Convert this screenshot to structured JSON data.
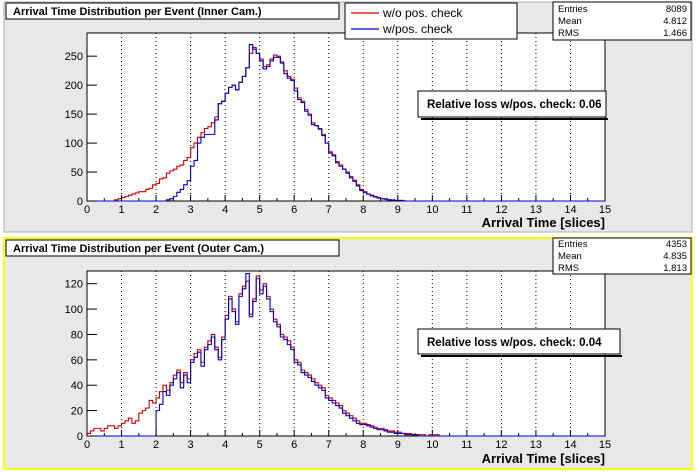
{
  "colors": {
    "background": "#e8e8e8",
    "frame_bottom_border": "#ffff00",
    "series_without_check": "#cc0000",
    "series_with_check": "#0000cc",
    "grid": "#000000"
  },
  "chart_data": [
    {
      "type": "histogram",
      "title": "Arrival Time Distribution per Event (Inner Cam.)",
      "xlabel": "Arrival Time [slices]",
      "ylabel": "",
      "xlim": [
        0,
        15
      ],
      "ylim": [
        0,
        290
      ],
      "xticks": [
        "0",
        "1",
        "2",
        "3",
        "4",
        "5",
        "6",
        "7",
        "8",
        "9",
        "10",
        "11",
        "12",
        "13",
        "14",
        "15"
      ],
      "yticks": [
        "0",
        "50",
        "100",
        "150",
        "200",
        "250"
      ],
      "grid": "vertical dotted",
      "legend_position": "top-center",
      "bin_width": 0.1,
      "series": [
        {
          "name": "w/o pos. check",
          "color": "#cc0000",
          "values": [
            0,
            0,
            0,
            0,
            0,
            0,
            0,
            0,
            2,
            4,
            6,
            8,
            10,
            12,
            14,
            16,
            16,
            20,
            22,
            28,
            30,
            38,
            40,
            48,
            52,
            55,
            60,
            62,
            70,
            75,
            92,
            100,
            110,
            118,
            125,
            128,
            135,
            145,
            168,
            172,
            186,
            196,
            200,
            192,
            205,
            215,
            230,
            255,
            265,
            255,
            245,
            232,
            235,
            245,
            252,
            250,
            240,
            225,
            215,
            210,
            195,
            178,
            172,
            158,
            150,
            135,
            130,
            125,
            115,
            100,
            85,
            80,
            68,
            62,
            55,
            50,
            42,
            36,
            28,
            20,
            16,
            12,
            10,
            8,
            6,
            4,
            4,
            2,
            2,
            1,
            1,
            1,
            0,
            0,
            0,
            0,
            0,
            0,
            0,
            0,
            0,
            0,
            0,
            0,
            0,
            0,
            0,
            0,
            0,
            0,
            0,
            0,
            0,
            0,
            0,
            0,
            0,
            0,
            0,
            0,
            0,
            0,
            0,
            0,
            0,
            0,
            0,
            0,
            0,
            0,
            0,
            0,
            0,
            0,
            0,
            0,
            0,
            0,
            0,
            0,
            0,
            0,
            0,
            0,
            0,
            0,
            0,
            0,
            0,
            0
          ]
        },
        {
          "name": "w/pos. check",
          "color": "#0000cc",
          "values": [
            0,
            0,
            0,
            0,
            0,
            0,
            0,
            0,
            0,
            0,
            0,
            0,
            0,
            0,
            0,
            0,
            0,
            0,
            0,
            0,
            0,
            0,
            0,
            2,
            4,
            8,
            15,
            20,
            28,
            35,
            60,
            70,
            100,
            110,
            115,
            115,
            115,
            140,
            168,
            172,
            186,
            196,
            200,
            192,
            205,
            215,
            230,
            270,
            262,
            255,
            242,
            228,
            232,
            242,
            248,
            248,
            238,
            220,
            212,
            208,
            190,
            175,
            170,
            155,
            148,
            132,
            130,
            124,
            113,
            100,
            83,
            78,
            66,
            60,
            55,
            48,
            40,
            34,
            26,
            18,
            15,
            12,
            9,
            7,
            5,
            4,
            3,
            2,
            1,
            1,
            1,
            0,
            0,
            0,
            0,
            0,
            0,
            0,
            0,
            0,
            0,
            0,
            0,
            0,
            0,
            0,
            0,
            0,
            0,
            0,
            0,
            0,
            0,
            0,
            0,
            0,
            0,
            0,
            0,
            0,
            0,
            0,
            0,
            0,
            0,
            0,
            0,
            0,
            0,
            0,
            0,
            0,
            0,
            0,
            0,
            0,
            0,
            0,
            0,
            0,
            0,
            0,
            0,
            0,
            0,
            0,
            0,
            0,
            0,
            0
          ]
        }
      ],
      "stats": [
        {
          "label": "Entries",
          "value": "8089"
        },
        {
          "label": "Mean",
          "value": "4.812"
        },
        {
          "label": "RMS",
          "value": "1.466"
        }
      ],
      "annotation": "Relative loss w/pos. check: 0.06"
    },
    {
      "type": "histogram",
      "title": "Arrival Time Distribution per Event (Outer Cam.)",
      "xlabel": "Arrival Time [slices]",
      "ylabel": "",
      "xlim": [
        0,
        15
      ],
      "ylim": [
        0,
        130
      ],
      "xticks": [
        "0",
        "1",
        "2",
        "3",
        "4",
        "5",
        "6",
        "7",
        "8",
        "9",
        "10",
        "11",
        "12",
        "13",
        "14",
        "15"
      ],
      "yticks": [
        "0",
        "20",
        "40",
        "60",
        "80",
        "100",
        "120"
      ],
      "grid": "vertical dotted",
      "bin_width": 0.1,
      "series": [
        {
          "name": "w/o pos. check",
          "color": "#cc0000",
          "values": [
            2,
            4,
            6,
            6,
            4,
            6,
            8,
            8,
            6,
            8,
            10,
            12,
            14,
            10,
            12,
            18,
            20,
            22,
            28,
            26,
            30,
            35,
            40,
            36,
            42,
            48,
            52,
            42,
            50,
            45,
            60,
            65,
            68,
            58,
            70,
            75,
            80,
            70,
            62,
            78,
            95,
            110,
            100,
            90,
            112,
            118,
            122,
            96,
            108,
            126,
            115,
            120,
            110,
            100,
            92,
            88,
            80,
            78,
            75,
            70,
            60,
            58,
            52,
            50,
            48,
            45,
            42,
            40,
            38,
            32,
            30,
            28,
            26,
            24,
            20,
            18,
            16,
            14,
            12,
            10,
            10,
            9,
            8,
            7,
            6,
            6,
            5,
            4,
            4,
            3,
            3,
            2,
            2,
            2,
            1,
            1,
            1,
            1,
            0,
            1,
            1,
            1,
            0,
            0,
            0,
            0,
            0,
            0,
            0,
            0,
            0,
            0,
            0,
            0,
            0,
            0,
            0,
            0,
            0,
            0,
            0,
            0,
            0,
            0,
            0,
            0,
            0,
            0,
            0,
            0,
            0,
            0,
            0,
            0,
            0,
            0,
            0,
            0,
            0,
            0,
            0,
            0,
            0,
            0,
            0,
            0,
            0,
            0,
            0,
            0
          ]
        },
        {
          "name": "w/pos. check",
          "color": "#0000cc",
          "values": [
            0,
            0,
            0,
            0,
            0,
            0,
            0,
            0,
            0,
            0,
            0,
            0,
            0,
            0,
            0,
            0,
            0,
            0,
            0,
            0,
            20,
            25,
            35,
            32,
            40,
            45,
            50,
            38,
            48,
            42,
            58,
            62,
            66,
            55,
            68,
            72,
            78,
            68,
            60,
            76,
            92,
            108,
            98,
            88,
            110,
            116,
            128,
            94,
            106,
            124,
            112,
            118,
            108,
            98,
            90,
            86,
            78,
            76,
            72,
            68,
            58,
            56,
            50,
            48,
            46,
            43,
            40,
            38,
            36,
            30,
            28,
            26,
            24,
            22,
            18,
            16,
            14,
            12,
            10,
            9,
            9,
            8,
            7,
            6,
            5,
            5,
            4,
            3,
            3,
            2,
            2,
            2,
            1,
            1,
            1,
            1,
            0,
            0,
            0,
            0,
            0,
            0,
            0,
            0,
            0,
            0,
            0,
            0,
            0,
            0,
            0,
            0,
            0,
            0,
            0,
            0,
            0,
            0,
            0,
            0,
            0,
            0,
            0,
            0,
            0,
            0,
            0,
            0,
            0,
            0,
            0,
            0,
            0,
            0,
            0,
            0,
            0,
            0,
            0,
            0,
            0,
            0,
            0,
            0,
            0,
            0,
            0,
            0,
            0,
            0
          ]
        }
      ],
      "stats": [
        {
          "label": "Entries",
          "value": "4353"
        },
        {
          "label": "Mean",
          "value": "4.835"
        },
        {
          "label": "RMS",
          "value": "1.813"
        }
      ],
      "annotation": "Relative loss w/pos. check: 0.04"
    }
  ]
}
